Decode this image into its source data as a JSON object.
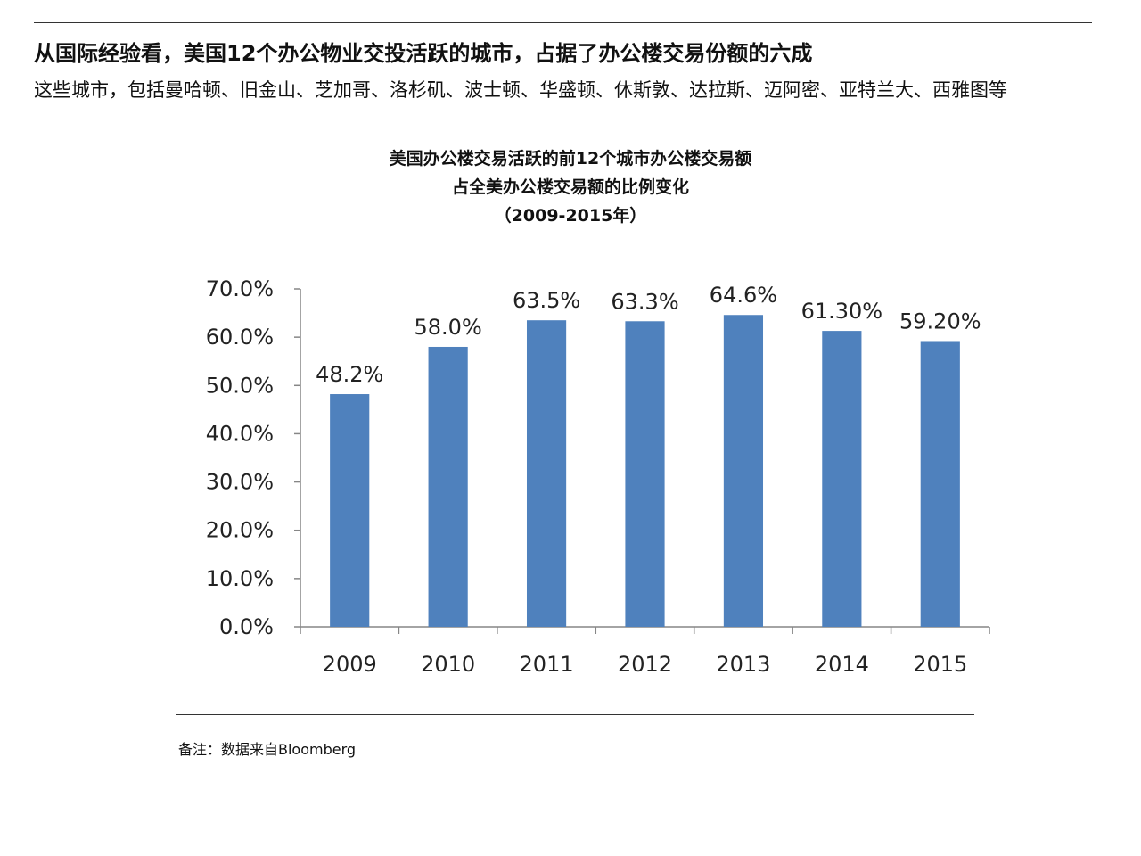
{
  "header": {
    "headline": "从国际经验看，美国12个办公物业交投活跃的城市，占据了办公楼交易份额的六成",
    "subline": "这些城市，包括曼哈顿、旧金山、芝加哥、洛杉矶、波士顿、华盛顿、休斯敦、达拉斯、迈阿密、亚特兰大、西雅图等"
  },
  "footer": {
    "source": "备注：数据来自Bloomberg"
  },
  "chart_data": {
    "type": "bar",
    "title_lines": [
      "美国办公楼交易活跃的前12个城市办公楼交易额",
      "占全美办公楼交易额的比例变化",
      "（2009-2015年）"
    ],
    "categories": [
      "2009",
      "2010",
      "2011",
      "2012",
      "2013",
      "2014",
      "2015"
    ],
    "values": [
      48.2,
      58.0,
      63.5,
      63.3,
      64.6,
      61.3,
      59.2
    ],
    "data_labels": [
      "48.2%",
      "58.0%",
      "63.5%",
      "63.3%",
      "64.6%",
      "61.30%",
      "59.20%"
    ],
    "y_ticks": [
      "0.0%",
      "10.0%",
      "20.0%",
      "30.0%",
      "40.0%",
      "50.0%",
      "60.0%",
      "70.0%"
    ],
    "ylim": [
      0,
      70
    ],
    "bar_color": "#4F81BD",
    "axis_color": "#868686",
    "grid": false,
    "legend": "none"
  }
}
